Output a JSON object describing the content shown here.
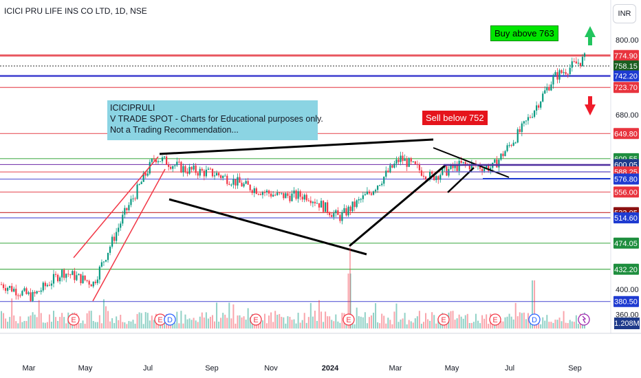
{
  "title": "ICICI PRU LIFE INS CO LTD, 1D, NSE",
  "currency_button": "INR",
  "note": {
    "line1": "ICICIPRULI",
    "line2": "V TRADE SPOT - Charts for Educational purposes only.",
    "line3": "Not a Trading Recommendation..."
  },
  "buy_label": "Buy above 763",
  "sell_label": "Sell below 752",
  "volume_label": "1.208M",
  "colors": {
    "up": "#089981",
    "down": "#f23645",
    "red_level": "#e8575f",
    "green_level": "#2ea043",
    "blue_level": "#5b5bd6",
    "buy_arrow": "#22c55e",
    "sell_arrow": "#ef1c2a"
  },
  "chart_data": {
    "type": "candlestick",
    "title": "ICICI PRU LIFE INS CO LTD, 1D, NSE",
    "ylim": [
      360,
      820
    ],
    "y_ticks": [
      "800.00",
      "680.00",
      "400.00",
      "360.00"
    ],
    "x_ticks": [
      "Mar",
      "May",
      "Jul",
      "Sep",
      "Nov",
      "2024",
      "Mar",
      "May",
      "Jul",
      "Sep"
    ],
    "price_path": [
      {
        "month": "Feb-2023",
        "close": 408
      },
      {
        "month": "Mar-2023",
        "close": 388
      },
      {
        "month": "Apr-2023",
        "close": 428
      },
      {
        "month": "May-2023",
        "close": 410
      },
      {
        "month": "Jun-2023",
        "close": 520
      },
      {
        "month": "Jul-2023",
        "close": 612
      },
      {
        "month": "Aug-2023",
        "close": 592
      },
      {
        "month": "Sep-2023",
        "close": 585
      },
      {
        "month": "Oct-2023",
        "close": 565
      },
      {
        "month": "Nov-2023",
        "close": 550
      },
      {
        "month": "Dec-2023",
        "close": 550
      },
      {
        "month": "Jan-2024",
        "close": 515
      },
      {
        "month": "Feb-2024",
        "close": 555
      },
      {
        "month": "Mar-2024",
        "close": 610
      },
      {
        "month": "Apr-2024",
        "close": 580
      },
      {
        "month": "May-2024",
        "close": 600
      },
      {
        "month": "Jun-2024",
        "close": 595
      },
      {
        "month": "Jul-2024",
        "close": 660
      },
      {
        "month": "Aug-2024",
        "close": 740
      },
      {
        "month": "Sep-2024",
        "close": 770
      }
    ],
    "levels": [
      {
        "price": 774.9,
        "label": "774.90",
        "color": "red"
      },
      {
        "price": 758.15,
        "label": "758.15",
        "color": "black"
      },
      {
        "price": 742.2,
        "label": "742.20",
        "color": "blue"
      },
      {
        "price": 723.7,
        "label": "723.70",
        "color": "red"
      },
      {
        "price": 649.8,
        "label": "649.80",
        "color": "red"
      },
      {
        "price": 609.55,
        "label": "609.55",
        "color": "green"
      },
      {
        "price": 600.05,
        "label": "600.05",
        "color": "purple"
      },
      {
        "price": 588.25,
        "label": "588.25",
        "color": "red"
      },
      {
        "price": 576.8,
        "label": "576.80",
        "color": "blue"
      },
      {
        "price": 556.0,
        "label": "556.00",
        "color": "red"
      },
      {
        "price": 523.05,
        "label": "523.05",
        "color": "darkred"
      },
      {
        "price": 514.6,
        "label": "514.60",
        "color": "blue"
      },
      {
        "price": 474.05,
        "label": "474.05",
        "color": "green"
      },
      {
        "price": 432.2,
        "label": "432.20",
        "color": "green"
      },
      {
        "price": 380.5,
        "label": "380.50",
        "color": "blue"
      }
    ],
    "events": [
      "E",
      "E",
      "D",
      "E",
      "E",
      "E",
      "E",
      "D",
      "E"
    ],
    "last_volume": "1.208M"
  }
}
